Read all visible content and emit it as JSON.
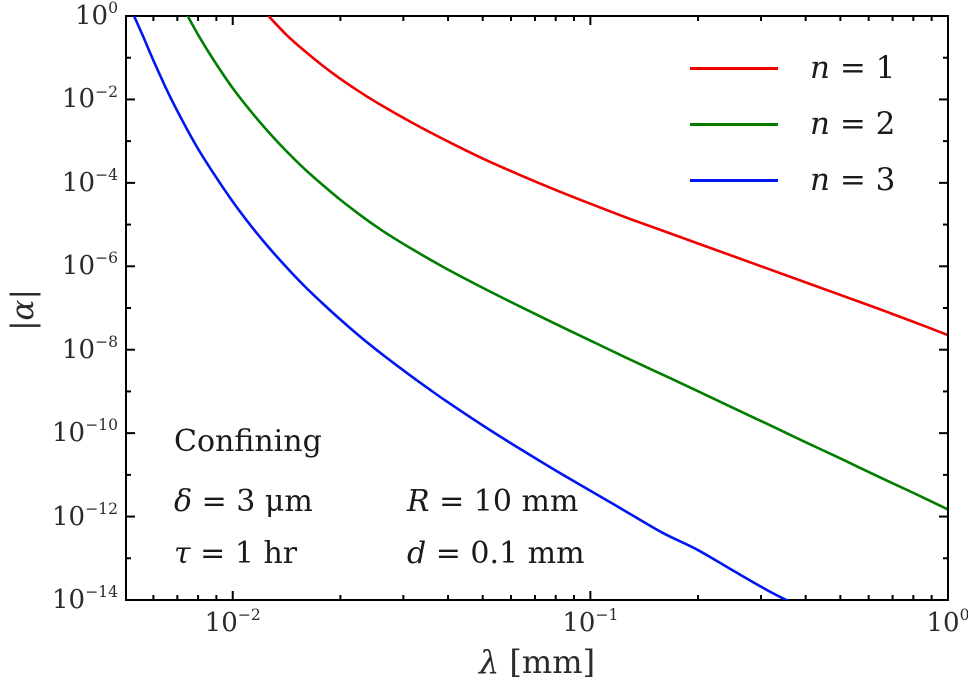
{
  "figure": {
    "background": "#ffffff"
  },
  "axes": {
    "xlabel_var": "λ",
    "xlabel_rest": " [mm]",
    "ylabel": "|α|"
  },
  "legend": [
    {
      "var": "n",
      "rest": " = 1",
      "color": "#f10000"
    },
    {
      "var": "n",
      "rest": " = 2",
      "color": "#007e00"
    },
    {
      "var": "n",
      "rest": " = 3",
      "color": "#0017f1"
    }
  ],
  "annotations": {
    "regime": "Confining",
    "delta_var": "δ",
    "delta_rest": " = 3 μm",
    "tau_var": "τ",
    "tau_rest": " = 1 hr",
    "R_var": "R",
    "R_rest": " = 10 mm",
    "d_var": "d",
    "d_rest": " = 0.1 mm"
  },
  "chart_data": {
    "type": "line",
    "x_scale": "log",
    "y_scale": "log",
    "title": "",
    "xlabel": "λ [mm]",
    "ylabel": "|α|",
    "x_range": [
      0.00503,
      1.0
    ],
    "y_range": [
      1e-14,
      1.0
    ],
    "x_tick_exponents": [
      -2,
      -1,
      0
    ],
    "y_tick_exponents": [
      0,
      -2,
      -4,
      -6,
      -8,
      -10,
      -12,
      -14
    ],
    "grid": false,
    "legend_position": "upper right",
    "series": [
      {
        "name": "n = 1",
        "color": "#f10000",
        "points_log10": [
          [
            -1.9,
            0.0
          ],
          [
            -1.85,
            -0.45
          ],
          [
            -1.8,
            -0.83
          ],
          [
            -1.75,
            -1.18
          ],
          [
            -1.7,
            -1.5
          ],
          [
            -1.65,
            -1.79
          ],
          [
            -1.6,
            -2.06
          ],
          [
            -1.55,
            -2.31
          ],
          [
            -1.5,
            -2.55
          ],
          [
            -1.45,
            -2.78
          ],
          [
            -1.4,
            -3.0
          ],
          [
            -1.3,
            -3.42
          ],
          [
            -1.2,
            -3.8
          ],
          [
            -1.1,
            -4.16
          ],
          [
            -1.0,
            -4.5
          ],
          [
            -0.9,
            -4.83
          ],
          [
            -0.8,
            -5.14
          ],
          [
            -0.7,
            -5.45
          ],
          [
            -0.6,
            -5.76
          ],
          [
            -0.5,
            -6.07
          ],
          [
            -0.4,
            -6.38
          ],
          [
            -0.3,
            -6.69
          ],
          [
            -0.2,
            -7.0
          ],
          [
            -0.1,
            -7.32
          ],
          [
            0.0,
            -7.65
          ]
        ]
      },
      {
        "name": "n = 2",
        "color": "#007e00",
        "points_log10": [
          [
            -2.126,
            0.0
          ],
          [
            -2.09,
            -0.55
          ],
          [
            -2.05,
            -1.1
          ],
          [
            -2.0,
            -1.73
          ],
          [
            -1.95,
            -2.28
          ],
          [
            -1.9,
            -2.78
          ],
          [
            -1.85,
            -3.24
          ],
          [
            -1.8,
            -3.66
          ],
          [
            -1.75,
            -4.04
          ],
          [
            -1.7,
            -4.4
          ],
          [
            -1.65,
            -4.73
          ],
          [
            -1.6,
            -5.04
          ],
          [
            -1.55,
            -5.32
          ],
          [
            -1.5,
            -5.58
          ],
          [
            -1.45,
            -5.83
          ],
          [
            -1.4,
            -6.07
          ],
          [
            -1.3,
            -6.52
          ],
          [
            -1.2,
            -6.95
          ],
          [
            -1.1,
            -7.37
          ],
          [
            -1.0,
            -7.78
          ],
          [
            -0.9,
            -8.19
          ],
          [
            -0.8,
            -8.59
          ],
          [
            -0.7,
            -8.99
          ],
          [
            -0.6,
            -9.4
          ],
          [
            -0.5,
            -9.8
          ],
          [
            -0.4,
            -10.21
          ],
          [
            -0.3,
            -10.61
          ],
          [
            -0.2,
            -11.02
          ],
          [
            -0.1,
            -11.42
          ],
          [
            0.0,
            -11.83
          ]
        ]
      },
      {
        "name": "n = 3",
        "color": "#0017f1",
        "points_log10": [
          [
            -2.276,
            0.0
          ],
          [
            -2.25,
            -0.5
          ],
          [
            -2.22,
            -1.1
          ],
          [
            -2.18,
            -1.85
          ],
          [
            -2.14,
            -2.52
          ],
          [
            -2.1,
            -3.14
          ],
          [
            -2.05,
            -3.82
          ],
          [
            -2.0,
            -4.45
          ],
          [
            -1.95,
            -5.02
          ],
          [
            -1.9,
            -5.54
          ],
          [
            -1.85,
            -6.02
          ],
          [
            -1.8,
            -6.47
          ],
          [
            -1.75,
            -6.88
          ],
          [
            -1.7,
            -7.27
          ],
          [
            -1.65,
            -7.64
          ],
          [
            -1.6,
            -7.99
          ],
          [
            -1.55,
            -8.32
          ],
          [
            -1.5,
            -8.64
          ],
          [
            -1.45,
            -8.95
          ],
          [
            -1.4,
            -9.25
          ],
          [
            -1.3,
            -9.82
          ],
          [
            -1.2,
            -10.36
          ],
          [
            -1.1,
            -10.88
          ],
          [
            -1.0,
            -11.38
          ],
          [
            -0.9,
            -11.88
          ],
          [
            -0.8,
            -12.38
          ],
          [
            -0.7,
            -12.8
          ],
          [
            -0.6,
            -13.3
          ],
          [
            -0.5,
            -13.79
          ],
          [
            -0.44,
            -14.05
          ]
        ]
      }
    ]
  }
}
